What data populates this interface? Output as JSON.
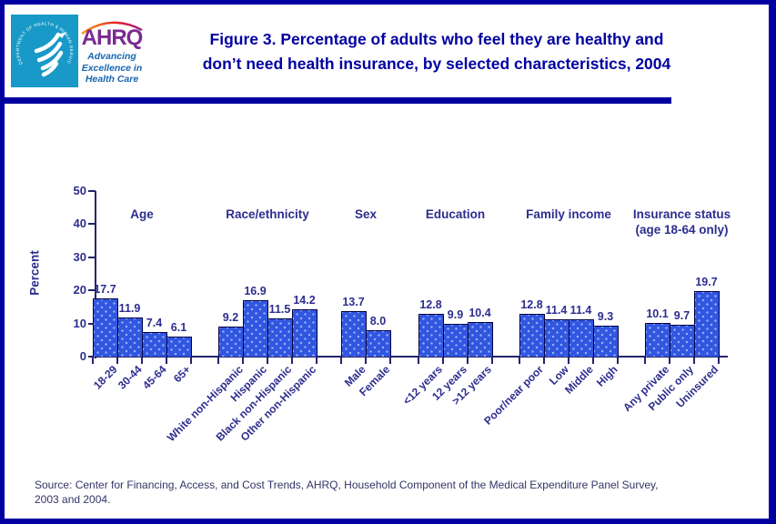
{
  "colors": {
    "accent_navy": "#0000A0",
    "hhs_teal": "#1899C8",
    "ahrq_purple": "#7A2A90",
    "tagline_blue": "#1566B0",
    "chart_text": "#2D2D8F",
    "source_text": "#333366"
  },
  "header": {
    "logo": {
      "ring_text": "DEPARTMENT OF HEALTH & HUMAN SERVICES • USA",
      "ahrq_acronym": "AHRQ",
      "tagline_lines": [
        "Advancing",
        "Excellence in",
        "Health Care"
      ]
    },
    "title_lines": [
      "Figure 3. Percentage of adults who feel they are healthy and",
      "don’t need health insurance, by selected characteristics, 2004"
    ]
  },
  "chart_data": {
    "type": "bar",
    "title": "Percentage of adults who feel they are healthy and don’t need health insurance, by selected characteristics, 2004",
    "xlabel": "",
    "ylabel": "Percent",
    "ylim": [
      0,
      50
    ],
    "yticks": [
      0,
      10,
      20,
      30,
      40,
      50
    ],
    "grid": false,
    "legend": "none",
    "bar_fill": "#3156E0",
    "bar_dot": "#9DB4FA",
    "bar_border": "#000040",
    "groups": [
      {
        "label_lines": [
          "Age"
        ],
        "categories": [
          "18-29",
          "30-44",
          "45-64",
          "65+"
        ],
        "values": [
          17.7,
          11.9,
          7.4,
          6.1
        ]
      },
      {
        "label_lines": [
          "Race/ethnicity"
        ],
        "categories": [
          "White non-Hispanic",
          "Hispanic",
          "Black non-Hispanic",
          "Other non-Hispanic"
        ],
        "values": [
          9.2,
          16.9,
          11.5,
          14.2
        ]
      },
      {
        "label_lines": [
          "Sex"
        ],
        "categories": [
          "Male",
          "Female"
        ],
        "values": [
          13.7,
          8.0
        ]
      },
      {
        "label_lines": [
          "Education"
        ],
        "categories": [
          "<12 years",
          "12 years",
          ">12 years"
        ],
        "values": [
          12.8,
          9.9,
          10.4
        ]
      },
      {
        "label_lines": [
          "Family income"
        ],
        "categories": [
          "Poor/near poor",
          "Low",
          "Middle",
          "High"
        ],
        "values": [
          12.8,
          11.4,
          11.4,
          9.3
        ]
      },
      {
        "label_lines": [
          "Insurance status",
          "(age 18-64 only)"
        ],
        "categories": [
          "Any private",
          "Public only",
          "Uninsured"
        ],
        "values": [
          10.1,
          9.7,
          19.7
        ]
      }
    ]
  },
  "source_lines": [
    "Source: Center for Financing, Access, and Cost Trends, AHRQ, Household Component of the Medical Expenditure Panel Survey,",
    "2003 and 2004."
  ]
}
